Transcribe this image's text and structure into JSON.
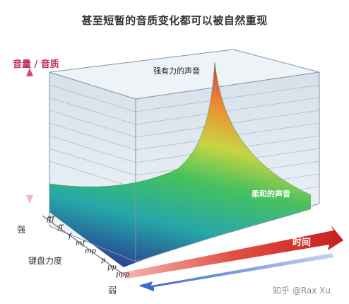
{
  "title": "甚至短暂的音质变化都可以被自然重现",
  "y_axis_label": "音量 / 音质",
  "peak_label": "强有力的声音",
  "soft_label": "柔和的声音",
  "time_label": "时间",
  "keyboard_force_label": "键盘力度",
  "strong_label": "强",
  "weak_label": "弱",
  "dynamics": [
    "fff",
    "ff",
    "f",
    "mf",
    "mp",
    "p",
    "pp",
    "ppp"
  ],
  "watermark": "知乎 @Rax Xu",
  "colors": {
    "title": "#333333",
    "axis_label": "#c0305a",
    "time_arrow": "#d42a2a",
    "weak_arrow": "#3f6fd0"
  }
}
